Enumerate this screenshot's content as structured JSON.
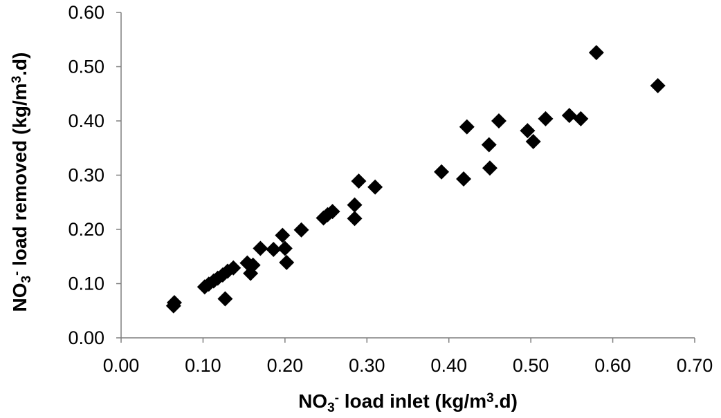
{
  "chart_data": {
    "type": "scatter",
    "title": "",
    "xlabel": {
      "parts": [
        {
          "text": "NO",
          "style": "normal"
        },
        {
          "text": "3",
          "style": "sub"
        },
        {
          "text": "-",
          "style": "sup"
        },
        {
          "text": " load inlet (kg/m",
          "style": "normal"
        },
        {
          "text": "3",
          "style": "sup"
        },
        {
          "text": ".d)",
          "style": "normal"
        }
      ]
    },
    "ylabel": {
      "parts": [
        {
          "text": "NO",
          "style": "normal"
        },
        {
          "text": "3",
          "style": "sub"
        },
        {
          "text": "-",
          "style": "sup"
        },
        {
          "text": " load removed (kg/m",
          "style": "normal"
        },
        {
          "text": "3",
          "style": "sup"
        },
        {
          "text": ".d)",
          "style": "normal"
        }
      ]
    },
    "xlim": [
      0,
      0.7
    ],
    "ylim": [
      0,
      0.6
    ],
    "x_ticks": [
      "0.00",
      "0.10",
      "0.20",
      "0.30",
      "0.40",
      "0.50",
      "0.60",
      "0.70"
    ],
    "y_ticks": [
      "0.00",
      "0.10",
      "0.20",
      "0.30",
      "0.40",
      "0.50",
      "0.60"
    ],
    "grid": false,
    "legend": false,
    "marker": "diamond",
    "marker_color": "#000000",
    "series": [
      {
        "points": [
          {
            "x": 0.065,
            "y": 0.065
          },
          {
            "x": 0.064,
            "y": 0.059
          },
          {
            "x": 0.102,
            "y": 0.094
          },
          {
            "x": 0.107,
            "y": 0.099
          },
          {
            "x": 0.113,
            "y": 0.105
          },
          {
            "x": 0.118,
            "y": 0.11
          },
          {
            "x": 0.124,
            "y": 0.116
          },
          {
            "x": 0.13,
            "y": 0.123
          },
          {
            "x": 0.127,
            "y": 0.072
          },
          {
            "x": 0.137,
            "y": 0.129
          },
          {
            "x": 0.154,
            "y": 0.138
          },
          {
            "x": 0.158,
            "y": 0.119
          },
          {
            "x": 0.161,
            "y": 0.134
          },
          {
            "x": 0.17,
            "y": 0.165
          },
          {
            "x": 0.186,
            "y": 0.163
          },
          {
            "x": 0.197,
            "y": 0.189
          },
          {
            "x": 0.2,
            "y": 0.165
          },
          {
            "x": 0.202,
            "y": 0.139
          },
          {
            "x": 0.22,
            "y": 0.199
          },
          {
            "x": 0.247,
            "y": 0.221
          },
          {
            "x": 0.252,
            "y": 0.227
          },
          {
            "x": 0.258,
            "y": 0.233
          },
          {
            "x": 0.285,
            "y": 0.245
          },
          {
            "x": 0.285,
            "y": 0.22
          },
          {
            "x": 0.29,
            "y": 0.289
          },
          {
            "x": 0.31,
            "y": 0.278
          },
          {
            "x": 0.391,
            "y": 0.306
          },
          {
            "x": 0.418,
            "y": 0.293
          },
          {
            "x": 0.422,
            "y": 0.389
          },
          {
            "x": 0.449,
            "y": 0.356
          },
          {
            "x": 0.45,
            "y": 0.313
          },
          {
            "x": 0.461,
            "y": 0.4
          },
          {
            "x": 0.496,
            "y": 0.382
          },
          {
            "x": 0.503,
            "y": 0.362
          },
          {
            "x": 0.518,
            "y": 0.404
          },
          {
            "x": 0.547,
            "y": 0.41
          },
          {
            "x": 0.561,
            "y": 0.404
          },
          {
            "x": 0.58,
            "y": 0.526
          },
          {
            "x": 0.655,
            "y": 0.465
          }
        ]
      }
    ]
  }
}
